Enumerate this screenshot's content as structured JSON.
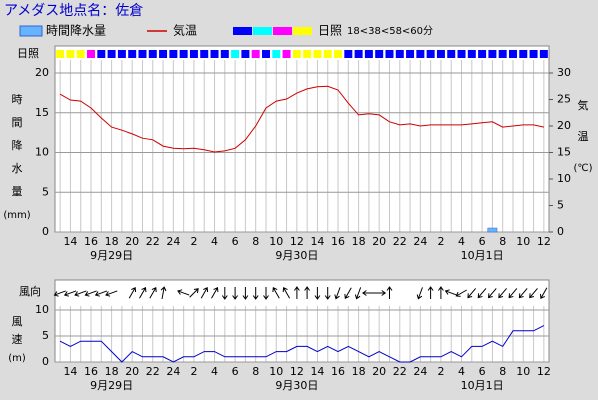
{
  "title": "アメダス地点名：佐倉",
  "chart_data": [
    {
      "type": "bar-line",
      "categories": [
        null,
        "14",
        null,
        "16",
        null,
        "18",
        null,
        "20",
        null,
        "22",
        null,
        "24",
        null,
        "2",
        null,
        "4",
        null,
        "6",
        null,
        "8",
        null,
        "10",
        null,
        "12",
        null,
        "14",
        null,
        "16",
        null,
        "18",
        null,
        "20",
        null,
        "22",
        null,
        "24",
        null,
        "2",
        null,
        "4",
        null,
        "6",
        null,
        "8",
        null,
        "10",
        null,
        "12"
      ],
      "day_labels": [
        "9月29日",
        "9月30日",
        "10月1日"
      ],
      "series": [
        {
          "name": "時間降水量",
          "type": "bar",
          "color": "#66b3ff",
          "values": [
            0,
            0,
            0,
            0,
            0,
            0,
            0,
            0,
            0,
            0,
            0,
            0,
            0,
            0,
            0,
            0,
            0,
            0,
            0,
            0,
            0,
            0,
            0,
            0,
            0,
            0,
            0,
            0,
            0,
            0,
            0,
            0,
            0,
            0,
            0,
            0,
            0,
            0,
            0,
            0,
            0,
            0,
            0.5,
            0,
            0,
            0,
            0,
            0
          ]
        },
        {
          "name": "気温",
          "type": "line",
          "axis": "y2",
          "color": "#cc0000",
          "values": [
            26.0,
            24.9,
            24.7,
            23.4,
            21.5,
            19.8,
            19.2,
            18.5,
            17.7,
            17.4,
            16.2,
            15.8,
            15.7,
            15.8,
            15.5,
            15.1,
            15.3,
            15.8,
            17.4,
            20.0,
            23.4,
            24.7,
            25.1,
            26.2,
            27.0,
            27.4,
            27.5,
            26.8,
            24.3,
            22.1,
            22.3,
            22.1,
            20.8,
            20.2,
            20.4,
            20.0,
            20.2,
            20.2,
            20.2,
            20.2,
            20.4,
            20.6,
            20.8,
            19.8,
            20.0,
            20.2,
            20.2,
            19.8
          ]
        }
      ],
      "ylim": [
        0,
        20
      ],
      "yticks": [
        0,
        5,
        10,
        15,
        20
      ],
      "y2lim": [
        0,
        30
      ],
      "y2ticks": [
        0,
        5,
        10,
        15,
        20,
        25,
        30
      ],
      "ylabel": [
        "時",
        "間",
        "降",
        "水",
        "量",
        "(mm)"
      ],
      "y2label": [
        "気",
        "温",
        "(℃)"
      ],
      "grid": true,
      "sunshine": {
        "label": "日照",
        "classes": "18<38<58<60分",
        "class_colors": [
          "#0000ff",
          "#00ffff",
          "#ff00ff",
          "#ffff00"
        ],
        "colors": [
          "#ffff00",
          "#ffff00",
          "#ffff00",
          "#ff00ff",
          "#0000ff",
          "#0000ff",
          "#0000ff",
          "#0000ff",
          "#0000ff",
          "#0000ff",
          "#0000ff",
          "#0000ff",
          "#0000ff",
          "#0000ff",
          "#0000ff",
          "#0000ff",
          "#0000ff",
          "#00ffff",
          "#0000ff",
          "#ff00ff",
          "#0000ff",
          "#00ffff",
          "#ff00ff",
          "#ffff00",
          "#ffff00",
          "#ffff00",
          "#ffff00",
          "#ffff00",
          "#0000ff",
          "#0000ff",
          "#0000ff",
          "#0000ff",
          "#0000ff",
          "#0000ff",
          "#0000ff",
          "#0000ff",
          "#0000ff",
          "#0000ff",
          "#0000ff",
          "#0000ff",
          "#0000ff",
          "#0000ff",
          "#0000ff",
          "#0000ff",
          "#0000ff",
          "#0000ff",
          "#0000ff",
          "#0000ff"
        ]
      }
    },
    {
      "type": "wind",
      "categories": [
        null,
        "14",
        null,
        "16",
        null,
        "18",
        null,
        "20",
        null,
        "22",
        null,
        "24",
        null,
        "2",
        null,
        "4",
        null,
        "6",
        null,
        "8",
        null,
        "10",
        null,
        "12",
        null,
        "14",
        null,
        "16",
        null,
        "18",
        null,
        "20",
        null,
        "22",
        null,
        "24",
        null,
        "2",
        null,
        "4",
        null,
        "6",
        null,
        "8",
        null,
        "10",
        null,
        "12"
      ],
      "day_labels": [
        "9月29日",
        "9月30日",
        "10月1日"
      ],
      "direction_label": "風向",
      "ylabel": [
        "風",
        "速",
        "(m)"
      ],
      "color": "#0000cc",
      "values": [
        4,
        3,
        4,
        4,
        4,
        2,
        0,
        2,
        1,
        1,
        1,
        0,
        1,
        1,
        2,
        2,
        1,
        1,
        1,
        1,
        1,
        2,
        2,
        3,
        3,
        2,
        3,
        2,
        3,
        2,
        1,
        2,
        1,
        0,
        0,
        1,
        1,
        1,
        2,
        1,
        3,
        3,
        4,
        3,
        6,
        6,
        6,
        7
      ],
      "directions": [
        250,
        250,
        250,
        250,
        250,
        250,
        null,
        30,
        30,
        30,
        10,
        null,
        290,
        45,
        30,
        30,
        180,
        180,
        180,
        180,
        180,
        330,
        330,
        0,
        0,
        180,
        180,
        200,
        210,
        200,
        270,
        90,
        0,
        null,
        null,
        200,
        0,
        0,
        290,
        240,
        220,
        220,
        220,
        220,
        220,
        220,
        220,
        210
      ],
      "ylim": [
        0,
        10
      ],
      "yticks": [
        0,
        5,
        10
      ],
      "grid": true
    }
  ]
}
